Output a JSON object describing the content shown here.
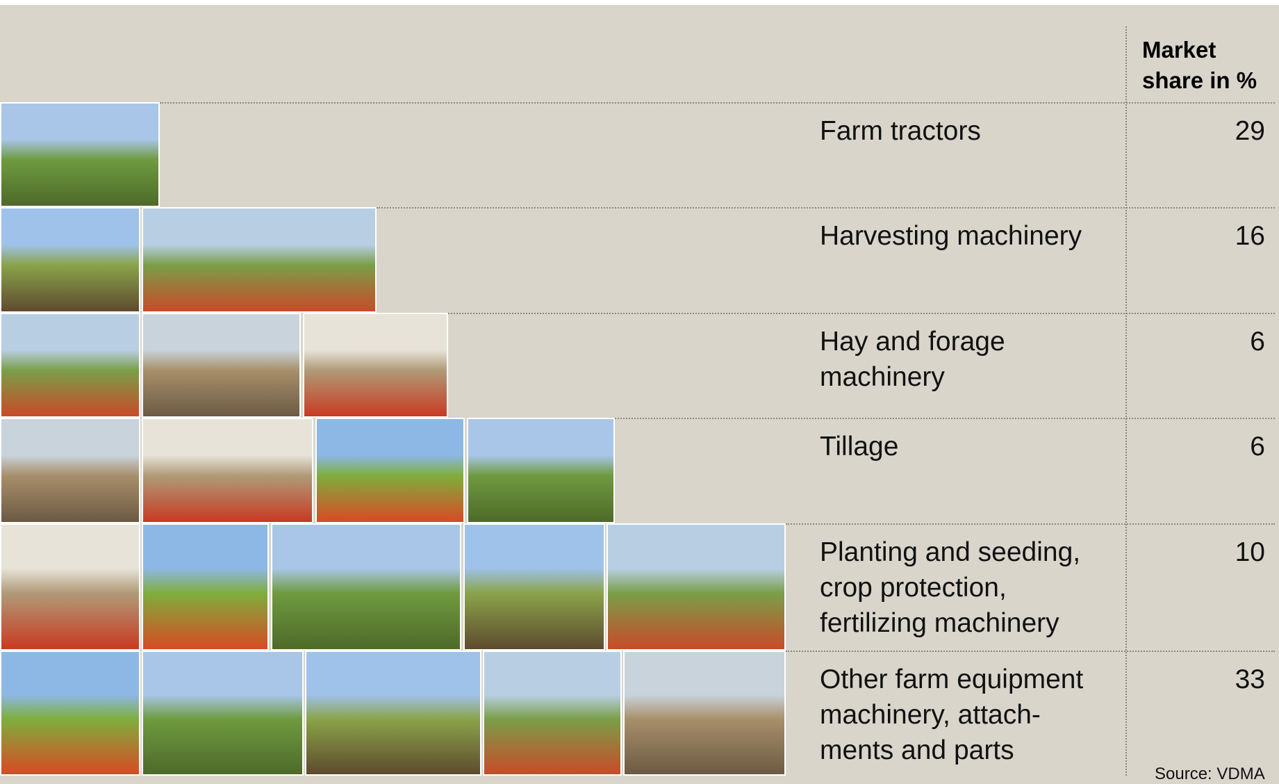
{
  "header": {
    "column_title": "Market share in %"
  },
  "rows": [
    {
      "label": "Farm tractors",
      "share": 29
    },
    {
      "label": "Harvesting machinery",
      "share": 16
    },
    {
      "label": "Hay and forage\nmachinery",
      "share": 6
    },
    {
      "label": "Tillage",
      "share": 6
    },
    {
      "label": "Planting and seeding,\ncrop protection,\nfertilizing machinery",
      "share": 10
    },
    {
      "label": "Other farm equipment\nmachinery, attach-\nments and parts",
      "share": 33
    }
  ],
  "source": "Source: VDMA"
}
